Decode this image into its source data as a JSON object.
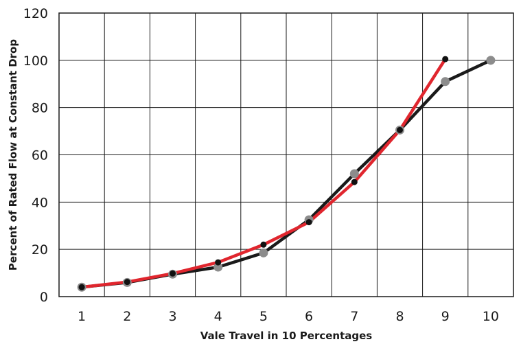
{
  "chart_data": {
    "type": "line",
    "title": "",
    "xlabel": "Vale Travel in 10 Percentages",
    "ylabel": "Percent of Rated Flow at Constant Drop",
    "x_ticks": [
      "1",
      "2",
      "3",
      "4",
      "5",
      "6",
      "7",
      "8",
      "9",
      "10"
    ],
    "y_ticks": [
      "0",
      "20",
      "40",
      "60",
      "80",
      "100",
      "120"
    ],
    "xlim": [
      0.5,
      10.5
    ],
    "ylim": [
      0,
      120
    ],
    "grid": true,
    "legend": "none",
    "series": [
      {
        "color": "#1a1a1a",
        "marker_color": "#8c8c8c",
        "x": [
          1,
          2,
          3,
          4,
          5,
          6,
          7,
          8,
          9,
          10
        ],
        "y": [
          4,
          6,
          9.5,
          12.5,
          18.5,
          32.5,
          52,
          70.5,
          91,
          100
        ]
      },
      {
        "color": "#e0262e",
        "marker_color": "#111111",
        "x": [
          1,
          2,
          3,
          4,
          5,
          6,
          7,
          8,
          9
        ],
        "y": [
          4,
          6.2,
          9.8,
          14.5,
          22,
          31.5,
          48.5,
          70.5,
          100.5
        ]
      }
    ]
  }
}
